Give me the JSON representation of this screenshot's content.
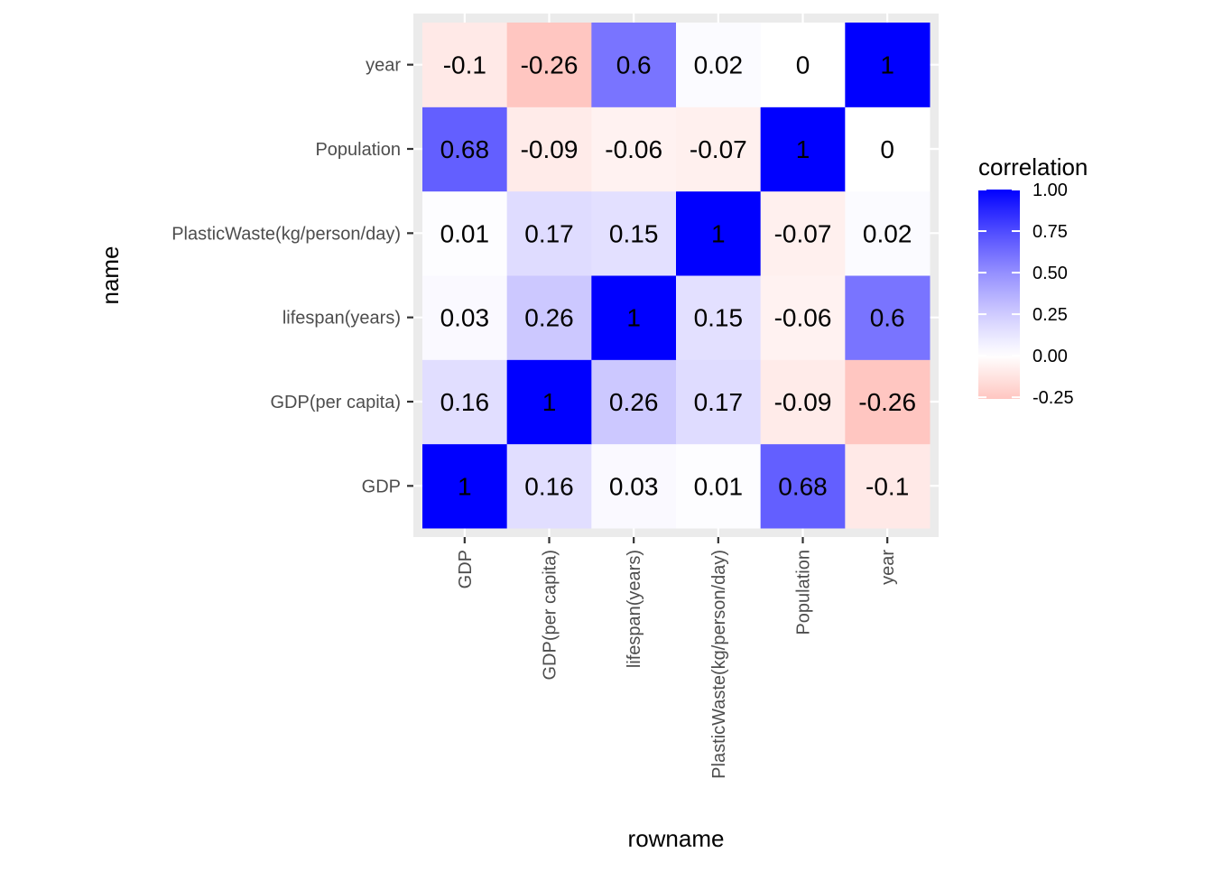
{
  "chart_data": {
    "type": "heatmap",
    "title": "",
    "xlabel": "rowname",
    "ylabel": "name",
    "x_categories": [
      "GDP",
      "GDP(per capita)",
      "lifespan(years)",
      "PlasticWaste(kg/person/day)",
      "Population",
      "year"
    ],
    "y_categories": [
      "GDP",
      "GDP(per capita)",
      "lifespan(years)",
      "PlasticWaste(kg/person/day)",
      "Population",
      "year"
    ],
    "values": [
      [
        1,
        0.16,
        0.03,
        0.01,
        0.68,
        -0.1
      ],
      [
        0.16,
        1,
        0.26,
        0.17,
        -0.09,
        -0.26
      ],
      [
        0.03,
        0.26,
        1,
        0.15,
        -0.06,
        0.6
      ],
      [
        0.01,
        0.17,
        0.15,
        1,
        -0.07,
        0.02
      ],
      [
        0.68,
        -0.09,
        -0.06,
        -0.07,
        1,
        0
      ],
      [
        -0.1,
        -0.26,
        0.6,
        0.02,
        0,
        1
      ]
    ],
    "legend": {
      "title": "correlation",
      "position": "right",
      "breaks": [
        1.0,
        0.75,
        0.5,
        0.25,
        0.0,
        -0.25
      ],
      "break_labels": [
        "1.00",
        "0.75",
        "0.50",
        "0.25",
        "0.00",
        "-0.25"
      ],
      "range": [
        -0.26,
        1
      ]
    },
    "color_scale": {
      "low": "#ff0000",
      "mid": "#ffffff",
      "high": "#0000ff"
    },
    "panel_background": "#ebebeb",
    "grid_color": "#ffffff"
  }
}
